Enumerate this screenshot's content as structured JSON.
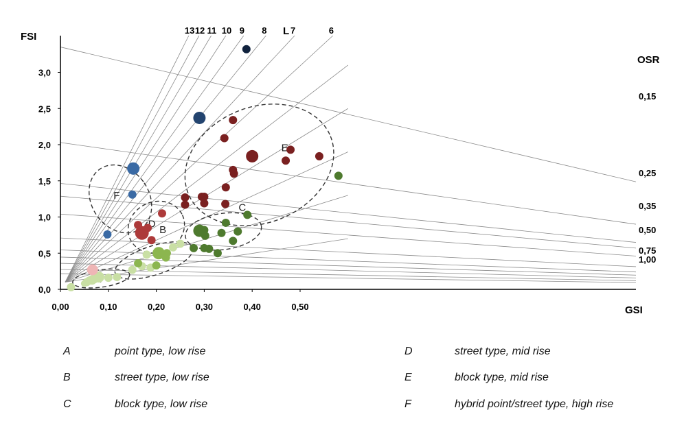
{
  "chart_data": {
    "type": "scatter",
    "ylabel": "FSI",
    "xlabel": "GSI",
    "xlim": [
      0,
      0.6
    ],
    "ylim": [
      0,
      3.5
    ],
    "x_ticks": [
      "0,00",
      "0,10",
      "0,20",
      "0,30",
      "0,40",
      "0,50"
    ],
    "x_tick_values": [
      0,
      0.1,
      0.2,
      0.3,
      0.4,
      0.5
    ],
    "y_ticks": [
      "0,0",
      "0,5",
      "1,0",
      "1,5",
      "2,0",
      "2,5",
      "3,0"
    ],
    "y_tick_values": [
      0,
      0.5,
      1.0,
      1.5,
      2.0,
      2.5,
      3.0
    ],
    "l_label": "L",
    "l_lines": [
      "13",
      "12",
      "11",
      "10",
      "9",
      "8",
      "7",
      "6"
    ],
    "l_line_values": [
      13,
      12,
      11,
      10,
      9,
      8,
      7,
      6
    ],
    "l_lines_unlabeled": [
      5,
      4,
      3,
      2,
      1
    ],
    "osr_label": "OSR",
    "osr_lines": [
      "0,15",
      "0,25",
      "0,35",
      "0,50",
      "0,75",
      "1,00"
    ],
    "osr_line_values": [
      0.15,
      0.25,
      0.35,
      0.5,
      0.75,
      1.0
    ],
    "osr_lines_unlabeled": [
      0.4,
      1.25,
      1.6,
      2.2,
      3.0
    ],
    "clusters": [
      {
        "label": "A",
        "center": [
          0.085,
          0.15
        ],
        "radii": [
          0.06,
          0.12
        ],
        "angle_deg": 0
      },
      {
        "label": "B",
        "center": [
          0.195,
          0.4
        ],
        "radii": [
          0.085,
          0.2
        ],
        "angle_deg": 0
      },
      {
        "label": "C",
        "center": [
          0.34,
          0.8
        ],
        "radii": [
          0.08,
          0.25
        ],
        "angle_deg": 0
      },
      {
        "label": "D",
        "center": [
          0.2,
          0.86
        ],
        "radii": [
          0.06,
          0.35
        ],
        "angle_deg": 0
      },
      {
        "label": "E",
        "center": [
          0.415,
          1.72
        ],
        "radii": [
          0.16,
          0.8
        ],
        "angle_deg": 0
      },
      {
        "label": "F",
        "center": [
          0.125,
          1.25
        ],
        "radii": [
          0.06,
          0.5
        ],
        "angle_deg": 0
      }
    ],
    "series": [
      {
        "color": "#c9dfa4",
        "points": [
          [
            0.022,
            0.03,
            6
          ],
          [
            0.05,
            0.08,
            5
          ],
          [
            0.055,
            0.1,
            6
          ],
          [
            0.06,
            0.12,
            6
          ],
          [
            0.066,
            0.13,
            7
          ],
          [
            0.071,
            0.14,
            6
          ],
          [
            0.08,
            0.17,
            8
          ],
          [
            0.1,
            0.16,
            6
          ],
          [
            0.118,
            0.17,
            6
          ],
          [
            0.15,
            0.27,
            6
          ],
          [
            0.17,
            0.32,
            6
          ],
          [
            0.188,
            0.3,
            6
          ],
          [
            0.235,
            0.58,
            6
          ],
          [
            0.25,
            0.63,
            6
          ],
          [
            0.18,
            0.48,
            6
          ]
        ]
      },
      {
        "color": "#8cb64f",
        "points": [
          [
            0.162,
            0.36,
            6
          ],
          [
            0.2,
            0.33,
            6
          ],
          [
            0.205,
            0.5,
            9
          ],
          [
            0.22,
            0.44,
            6
          ],
          [
            0.222,
            0.5,
            6
          ]
        ]
      },
      {
        "color": "#4e7a2e",
        "points": [
          [
            0.278,
            0.57,
            6
          ],
          [
            0.29,
            0.81,
            9
          ],
          [
            0.3,
            0.82,
            6
          ],
          [
            0.302,
            0.74,
            6
          ],
          [
            0.31,
            0.56,
            6
          ],
          [
            0.328,
            0.5,
            6
          ],
          [
            0.336,
            0.78,
            6
          ],
          [
            0.345,
            0.92,
            6
          ],
          [
            0.36,
            0.67,
            6
          ],
          [
            0.37,
            0.8,
            6
          ],
          [
            0.39,
            1.03,
            6
          ],
          [
            0.58,
            1.57,
            6
          ],
          [
            0.3,
            0.57,
            6
          ]
        ]
      },
      {
        "color": "#ad3a3a",
        "points": [
          [
            0.162,
            0.89,
            6
          ],
          [
            0.17,
            0.78,
            10
          ],
          [
            0.182,
            0.85,
            6
          ],
          [
            0.19,
            0.68,
            6
          ],
          [
            0.212,
            1.05,
            6
          ]
        ]
      },
      {
        "color": "#7a2020",
        "points": [
          [
            0.26,
            1.27,
            6
          ],
          [
            0.26,
            1.17,
            6
          ],
          [
            0.3,
            1.28,
            6
          ],
          [
            0.295,
            1.28,
            6
          ],
          [
            0.3,
            1.19,
            6
          ],
          [
            0.344,
            1.18,
            6
          ],
          [
            0.345,
            1.41,
            6
          ],
          [
            0.36,
            1.65,
            6
          ],
          [
            0.362,
            1.6,
            6
          ],
          [
            0.342,
            2.09,
            6
          ],
          [
            0.36,
            2.34,
            6
          ],
          [
            0.4,
            1.84,
            9
          ],
          [
            0.47,
            1.78,
            6
          ],
          [
            0.48,
            1.93,
            6
          ],
          [
            0.54,
            1.84,
            6
          ]
        ]
      },
      {
        "color": "#3a6aa4",
        "points": [
          [
            0.098,
            0.76,
            6
          ],
          [
            0.15,
            1.31,
            6
          ],
          [
            0.152,
            1.67,
            9
          ]
        ]
      },
      {
        "color": "#23446f",
        "points": [
          [
            0.29,
            2.37,
            9
          ]
        ]
      },
      {
        "color": "#10223d",
        "points": [
          [
            0.388,
            3.32,
            6
          ]
        ]
      },
      {
        "color": "#efb6b6",
        "points": [
          [
            0.067,
            0.27,
            8
          ]
        ]
      }
    ]
  },
  "legend": [
    {
      "letter": "A",
      "text": "point type, low rise"
    },
    {
      "letter": "B",
      "text": "street type, low rise"
    },
    {
      "letter": "C",
      "text": "block type, low rise"
    },
    {
      "letter": "D",
      "text": "street type, mid rise"
    },
    {
      "letter": "E",
      "text": "block type, mid rise"
    },
    {
      "letter": "F",
      "text": "hybrid point/street type, high rise"
    }
  ]
}
